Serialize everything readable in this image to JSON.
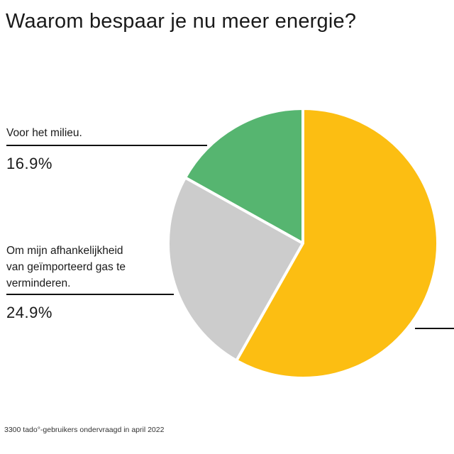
{
  "title": "Waarom bespaar je nu meer energie?",
  "source": "3300 tado°-gebruikers ondervraagd in april 2022",
  "chart_data": {
    "type": "pie",
    "title": "Waarom bespaar je nu meer energie?",
    "start_angle_deg": 0,
    "direction": "counterclockwise",
    "slices": [
      {
        "label": "Voor het milieu.",
        "value": 16.9,
        "value_label": "16.9%",
        "color": "#56b570"
      },
      {
        "label": "Om mijn afhankelijkheid van geïmporteerd gas te verminderen.",
        "value": 24.9,
        "value_label": "24.9%",
        "color": "#cccccc"
      },
      {
        "label": "",
        "value": 58.2,
        "value_label": "",
        "color": "#fcbe12"
      }
    ],
    "legend": "none"
  },
  "labels": {
    "milieu_text": "Voor het milieu.",
    "milieu_pct": "16.9%",
    "gas_text_line1": "Om mijn afhankelijkheid",
    "gas_text_line2": "van geïmporteerd gas te",
    "gas_text_line3": "verminderen.",
    "gas_pct": "24.9%"
  }
}
